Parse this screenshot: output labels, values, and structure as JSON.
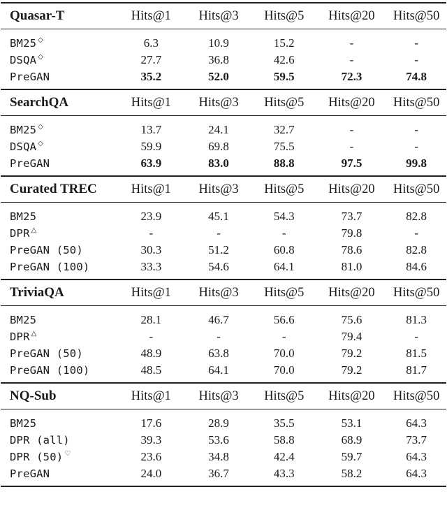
{
  "columns": [
    "Hits@1",
    "Hits@3",
    "Hits@5",
    "Hits@20",
    "Hits@50"
  ],
  "sections": [
    {
      "dataset": "Quasar-T",
      "rows": [
        {
          "method": "BM25",
          "mark": "◇",
          "values": [
            "6.3",
            "10.9",
            "15.2",
            "-",
            "-"
          ],
          "bold": false
        },
        {
          "method": "DSQA",
          "mark": "◇",
          "values": [
            "27.7",
            "36.8",
            "42.6",
            "-",
            "-"
          ],
          "bold": false
        },
        {
          "method": "PreGAN",
          "mark": "",
          "values": [
            "35.2",
            "52.0",
            "59.5",
            "72.3",
            "74.8"
          ],
          "bold": true
        }
      ]
    },
    {
      "dataset": "SearchQA",
      "rows": [
        {
          "method": "BM25",
          "mark": "◇",
          "values": [
            "13.7",
            "24.1",
            "32.7",
            "-",
            "-"
          ],
          "bold": false
        },
        {
          "method": "DSQA",
          "mark": "◇",
          "values": [
            "59.9",
            "69.8",
            "75.5",
            "-",
            "-"
          ],
          "bold": false
        },
        {
          "method": "PreGAN",
          "mark": "",
          "values": [
            "63.9",
            "83.0",
            "88.8",
            "97.5",
            "99.8"
          ],
          "bold": true
        }
      ]
    },
    {
      "dataset": "Curated TREC",
      "rows": [
        {
          "method": "BM25",
          "mark": "",
          "values": [
            "23.9",
            "45.1",
            "54.3",
            "73.7",
            "82.8"
          ],
          "bold": false
        },
        {
          "method": "DPR",
          "mark": "△",
          "values": [
            "-",
            "-",
            "-",
            "79.8",
            "-"
          ],
          "bold": false
        },
        {
          "method": "PreGAN (50)",
          "mark": "",
          "values": [
            "30.3",
            "51.2",
            "60.8",
            "78.6",
            "82.8"
          ],
          "bold": false
        },
        {
          "method": "PreGAN (100)",
          "mark": "",
          "values": [
            "33.3",
            "54.6",
            "64.1",
            "81.0",
            "84.6"
          ],
          "bold": false
        }
      ]
    },
    {
      "dataset": "TriviaQA",
      "rows": [
        {
          "method": "BM25",
          "mark": "",
          "values": [
            "28.1",
            "46.7",
            "56.6",
            "75.6",
            "81.3"
          ],
          "bold": false
        },
        {
          "method": "DPR",
          "mark": "△",
          "values": [
            "-",
            "-",
            "-",
            "79.4",
            "-"
          ],
          "bold": false
        },
        {
          "method": "PreGAN (50)",
          "mark": "",
          "values": [
            "48.9",
            "63.8",
            "70.0",
            "79.2",
            "81.5"
          ],
          "bold": false
        },
        {
          "method": "PreGAN (100)",
          "mark": "",
          "values": [
            "48.5",
            "64.1",
            "70.0",
            "79.2",
            "81.7"
          ],
          "bold": false
        }
      ]
    },
    {
      "dataset": "NQ-Sub",
      "rows": [
        {
          "method": "BM25",
          "mark": "",
          "values": [
            "17.6",
            "28.9",
            "35.5",
            "53.1",
            "64.3"
          ],
          "bold": false
        },
        {
          "method": "DPR (all)",
          "mark": "",
          "values": [
            "39.3",
            "53.6",
            "58.8",
            "68.9",
            "73.7"
          ],
          "bold": false
        },
        {
          "method": "DPR (50)",
          "mark": "♡",
          "values": [
            "23.6",
            "34.8",
            "42.4",
            "59.7",
            "64.3"
          ],
          "bold": false
        },
        {
          "method": "PreGAN",
          "mark": "",
          "values": [
            "24.0",
            "36.7",
            "43.3",
            "58.2",
            "64.3"
          ],
          "bold": false
        }
      ]
    }
  ]
}
